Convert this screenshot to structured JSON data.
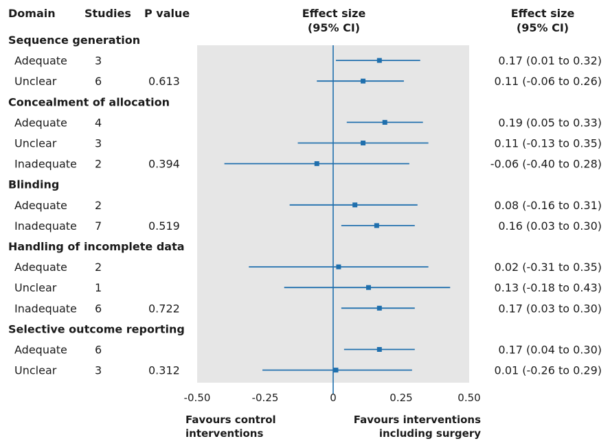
{
  "chart_data": {
    "type": "forest",
    "headers": {
      "domain": "Domain",
      "studies": "Studies",
      "p_value": "P value",
      "effect_size_mid": [
        "Effect size",
        "(95% CI)"
      ],
      "effect_size_right": [
        "Effect size",
        "(95% CI)"
      ]
    },
    "x_ticks": [
      "-0.50",
      "-0.25",
      "0",
      "0.25",
      "0.50"
    ],
    "xlim": [
      -0.5,
      0.5
    ],
    "reference_line": 0,
    "footer_left": [
      "Favours control",
      "interventions"
    ],
    "footer_right": [
      "Favours interventions",
      "including surgery"
    ],
    "colors": {
      "band": "#e6e6e6",
      "mark": "#1f6fad"
    },
    "rows": [
      {
        "kind": "group",
        "label": "Sequence generation"
      },
      {
        "kind": "item",
        "label": "Adequate",
        "studies": "3",
        "p": "",
        "est": 0.17,
        "lo": 0.01,
        "hi": 0.32,
        "ci_text": "0.17 (0.01 to 0.32)"
      },
      {
        "kind": "item",
        "label": "Unclear",
        "studies": "6",
        "p": "0.613",
        "est": 0.11,
        "lo": -0.06,
        "hi": 0.26,
        "ci_text": "0.11 (-0.06 to 0.26)"
      },
      {
        "kind": "group",
        "label": "Concealment of allocation"
      },
      {
        "kind": "item",
        "label": "Adequate",
        "studies": "4",
        "p": "",
        "est": 0.19,
        "lo": 0.05,
        "hi": 0.33,
        "ci_text": "0.19 (0.05 to 0.33)"
      },
      {
        "kind": "item",
        "label": "Unclear",
        "studies": "3",
        "p": "",
        "est": 0.11,
        "lo": -0.13,
        "hi": 0.35,
        "ci_text": "0.11 (-0.13 to 0.35)"
      },
      {
        "kind": "item",
        "label": "Inadequate",
        "studies": "2",
        "p": "0.394",
        "est": -0.06,
        "lo": -0.4,
        "hi": 0.28,
        "ci_text": "-0.06 (-0.40 to 0.28)"
      },
      {
        "kind": "group",
        "label": "Blinding"
      },
      {
        "kind": "item",
        "label": "Adequate",
        "studies": "2",
        "p": "",
        "est": 0.08,
        "lo": -0.16,
        "hi": 0.31,
        "ci_text": "0.08 (-0.16 to 0.31)"
      },
      {
        "kind": "item",
        "label": "Inadequate",
        "studies": "7",
        "p": "0.519",
        "est": 0.16,
        "lo": 0.03,
        "hi": 0.3,
        "ci_text": "0.16 (0.03 to 0.30)"
      },
      {
        "kind": "group",
        "label": "Handling of incomplete data"
      },
      {
        "kind": "item",
        "label": "Adequate",
        "studies": "2",
        "p": "",
        "est": 0.02,
        "lo": -0.31,
        "hi": 0.35,
        "ci_text": "0.02 (-0.31 to 0.35)"
      },
      {
        "kind": "item",
        "label": "Unclear",
        "studies": "1",
        "p": "",
        "est": 0.13,
        "lo": -0.18,
        "hi": 0.43,
        "ci_text": "0.13 (-0.18 to 0.43)"
      },
      {
        "kind": "item",
        "label": "Inadequate",
        "studies": "6",
        "p": "0.722",
        "est": 0.17,
        "lo": 0.03,
        "hi": 0.3,
        "ci_text": "0.17 (0.03 to 0.30)"
      },
      {
        "kind": "group",
        "label": "Selective outcome reporting"
      },
      {
        "kind": "item",
        "label": "Adequate",
        "studies": "6",
        "p": "",
        "est": 0.17,
        "lo": 0.04,
        "hi": 0.3,
        "ci_text": "0.17 (0.04 to 0.30)"
      },
      {
        "kind": "item",
        "label": "Unclear",
        "studies": "3",
        "p": "0.312",
        "est": 0.01,
        "lo": -0.26,
        "hi": 0.29,
        "ci_text": "0.01 (-0.26 to 0.29)"
      }
    ]
  }
}
